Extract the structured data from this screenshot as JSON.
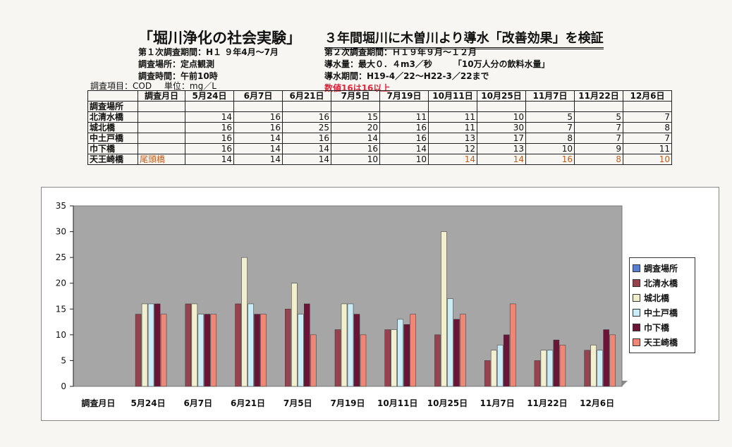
{
  "headings": {
    "title_left": "「堀川浄化の社会実験」",
    "title_right": "３年間堀川に木曽川より導水「改善効果」を検証"
  },
  "survey1": {
    "period": "第１次調査期間：H１ ９年4月～7月",
    "place": "調査場所：定点観測",
    "time": "調査時間：午前10時"
  },
  "survey2": {
    "period": "第２次調査期間：Ｈ１９年９月～１２月",
    "flow": "導水量：最大０．４m3／秒　　　「10万人分の飲料水量」",
    "flow_period": "導水期間：H19-4／22～H22-3／22まで",
    "note": "数値16は16以上"
  },
  "item_line": {
    "item": "調査項目：COD",
    "unit": "単位：mg／L"
  },
  "table": {
    "corner": "",
    "date_header": "調査月日",
    "dates": [
      "5月24日",
      "6月7日",
      "6月21日",
      "7月5日",
      "7月19日",
      "10月11日",
      "10月25日",
      "11月7日",
      "11月22日",
      "12月6日"
    ],
    "place_label": "調査場所",
    "rows": [
      {
        "site": "北清水橋",
        "sub": "",
        "values": [
          "14",
          "16",
          "16",
          "15",
          "11",
          "11",
          "10",
          "5",
          "5",
          "7"
        ]
      },
      {
        "site": "城北橋",
        "sub": "",
        "values": [
          "16",
          "16",
          "25",
          "20",
          "16",
          "11",
          "30",
          "7",
          "7",
          "8"
        ]
      },
      {
        "site": "中土戸橋",
        "sub": "",
        "values": [
          "16",
          "14",
          "16",
          "14",
          "16",
          "13",
          "17",
          "8",
          "7",
          "7"
        ]
      },
      {
        "site": "巾下橋",
        "sub": "",
        "values": [
          "16",
          "14",
          "14",
          "16",
          "14",
          "12",
          "13",
          "10",
          "9",
          "11"
        ]
      },
      {
        "site": "天王崎橋",
        "sub": "尾頭橋",
        "values": [
          "14",
          "14",
          "14",
          "10",
          "10",
          "14",
          "14",
          "16",
          "8",
          "10"
        ]
      }
    ]
  },
  "chart_data": {
    "type": "bar",
    "categories": [
      "調査月日",
      "5月24日",
      "6月7日",
      "6月21日",
      "7月5日",
      "7月19日",
      "10月11日",
      "10月25日",
      "11月7日",
      "11月22日",
      "12月6日"
    ],
    "ylim": [
      0,
      35
    ],
    "yticks": [
      0,
      5,
      10,
      15,
      20,
      25,
      30,
      35
    ],
    "grid": false,
    "legend_position": "right",
    "series": [
      {
        "name": "調査場所",
        "color": "#5a7fd0",
        "values": [
          0,
          0,
          0,
          0,
          0,
          0,
          0,
          0,
          0,
          0,
          0
        ]
      },
      {
        "name": "北清水橋",
        "color": "#96434f",
        "values": [
          0,
          14,
          16,
          16,
          15,
          11,
          11,
          10,
          5,
          5,
          7
        ]
      },
      {
        "name": "城北橋",
        "color": "#f2efcf",
        "values": [
          0,
          16,
          16,
          25,
          20,
          16,
          11,
          30,
          7,
          7,
          8
        ]
      },
      {
        "name": "中土戸橋",
        "color": "#c9ecf7",
        "values": [
          0,
          16,
          14,
          16,
          14,
          16,
          13,
          17,
          8,
          7,
          7
        ]
      },
      {
        "name": "巾下橋",
        "color": "#6a1438",
        "values": [
          0,
          16,
          14,
          14,
          16,
          14,
          12,
          13,
          10,
          9,
          11
        ]
      },
      {
        "name": "天王崎橋",
        "color": "#f08676",
        "values": [
          0,
          14,
          14,
          14,
          10,
          10,
          14,
          14,
          16,
          8,
          10
        ]
      }
    ],
    "plot_bg": "#a6a6a6"
  }
}
